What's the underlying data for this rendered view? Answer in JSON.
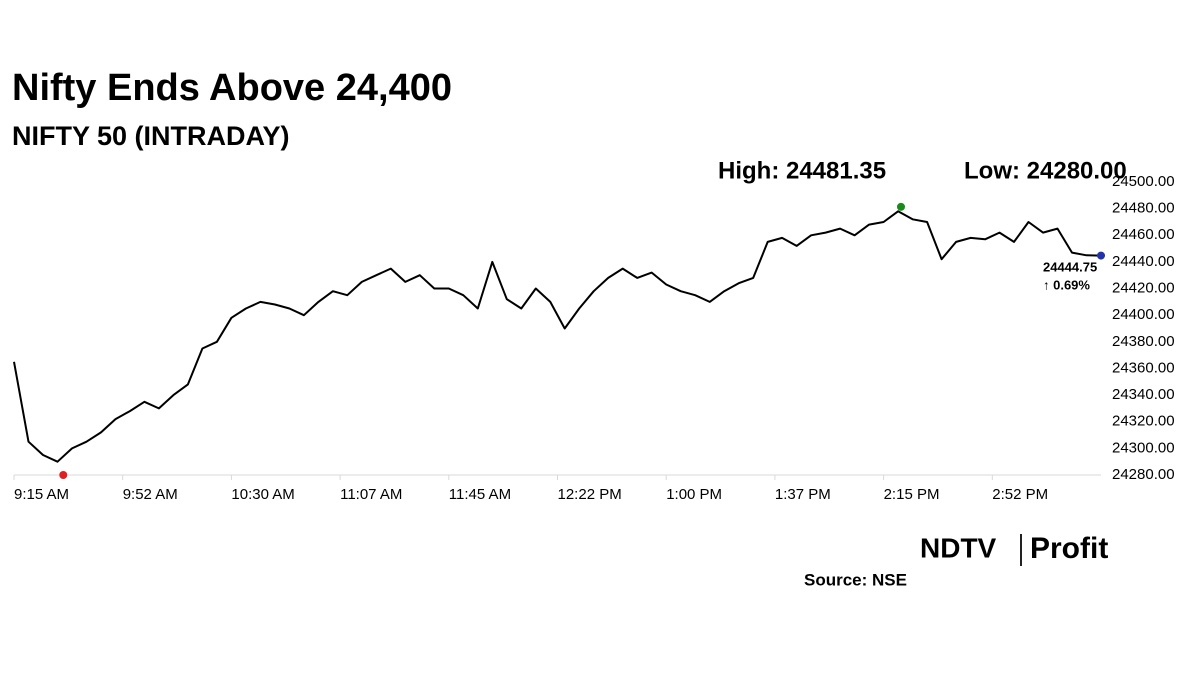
{
  "chart_data": {
    "type": "line",
    "title": "Nifty Ends Above 24,400",
    "subtitle": "NIFTY 50 (INTRADAY)",
    "color": "#000000",
    "x": [
      555,
      560,
      565,
      570,
      575,
      580,
      585,
      590,
      595,
      600,
      605,
      610,
      615,
      620,
      625,
      630,
      635,
      640,
      645,
      650,
      655,
      660,
      665,
      670,
      675,
      680,
      685,
      690,
      695,
      700,
      705,
      710,
      715,
      720,
      725,
      730,
      735,
      740,
      745,
      750,
      755,
      760,
      765,
      770,
      775,
      780,
      785,
      790,
      795,
      800,
      805,
      810,
      815,
      820,
      825,
      830,
      835,
      840,
      845,
      850,
      855,
      860,
      865,
      870,
      875,
      880,
      885,
      890,
      895,
      900,
      905,
      910,
      915,
      920,
      925,
      930
    ],
    "values": [
      24365,
      24305,
      24295,
      24290,
      24300,
      24305,
      24312,
      24322,
      24328,
      24335,
      24330,
      24340,
      24348,
      24375,
      24380,
      24398,
      24405,
      24410,
      24408,
      24405,
      24400,
      24410,
      24418,
      24415,
      24425,
      24430,
      24435,
      24425,
      24430,
      24420,
      24420,
      24415,
      24405,
      24440,
      24412,
      24405,
      24420,
      24410,
      24390,
      24405,
      24418,
      24428,
      24435,
      24428,
      24432,
      24423,
      24418,
      24415,
      24410,
      24418,
      24424,
      24428,
      24455,
      24458,
      24452,
      24460,
      24462,
      24465,
      24460,
      24468,
      24470,
      24478,
      24472,
      24470,
      24442,
      24455,
      24458,
      24457,
      24462,
      24455,
      24470,
      24462,
      24465,
      24447,
      24445,
      24444.75
    ],
    "xlim": [
      555,
      930
    ],
    "xticks": [
      {
        "value": 555,
        "label": "9:15 AM"
      },
      {
        "value": 592.5,
        "label": "9:52 AM"
      },
      {
        "value": 630,
        "label": "10:30 AM"
      },
      {
        "value": 667.5,
        "label": "11:07 AM"
      },
      {
        "value": 705,
        "label": "11:45 AM"
      },
      {
        "value": 742.5,
        "label": "12:22 PM"
      },
      {
        "value": 780,
        "label": "1:00 PM"
      },
      {
        "value": 817.5,
        "label": "1:37 PM"
      },
      {
        "value": 855,
        "label": "2:15 PM"
      },
      {
        "value": 892.5,
        "label": "2:52 PM"
      }
    ],
    "ylim": [
      24280,
      24500
    ],
    "yticks": [
      {
        "value": 24280,
        "label": "24280.00"
      },
      {
        "value": 24300,
        "label": "24300.00"
      },
      {
        "value": 24320,
        "label": "24320.00"
      },
      {
        "value": 24340,
        "label": "24340.00"
      },
      {
        "value": 24360,
        "label": "24360.00"
      },
      {
        "value": 24380,
        "label": "24380.00"
      },
      {
        "value": 24400,
        "label": "24400.00"
      },
      {
        "value": 24420,
        "label": "24420.00"
      },
      {
        "value": 24440,
        "label": "24440.00"
      },
      {
        "value": 24460,
        "label": "24460.00"
      },
      {
        "value": 24480,
        "label": "24480.00"
      },
      {
        "value": 24500,
        "label": "24500.00"
      }
    ],
    "grid": false,
    "high": {
      "x": 861,
      "value": 24481.35,
      "label": "High: 24481.35",
      "color": "#1a8a1a"
    },
    "low": {
      "x": 572,
      "value": 24280,
      "label": "Low: 24280.00",
      "color": "#e02020"
    },
    "last": {
      "x": 930,
      "value": 24444.75,
      "label": "24444.75",
      "change_label": "↑ 0.69%",
      "color": "#2233aa"
    },
    "logo": [
      "NDTV",
      "Profit"
    ],
    "source": "Source: NSE"
  }
}
